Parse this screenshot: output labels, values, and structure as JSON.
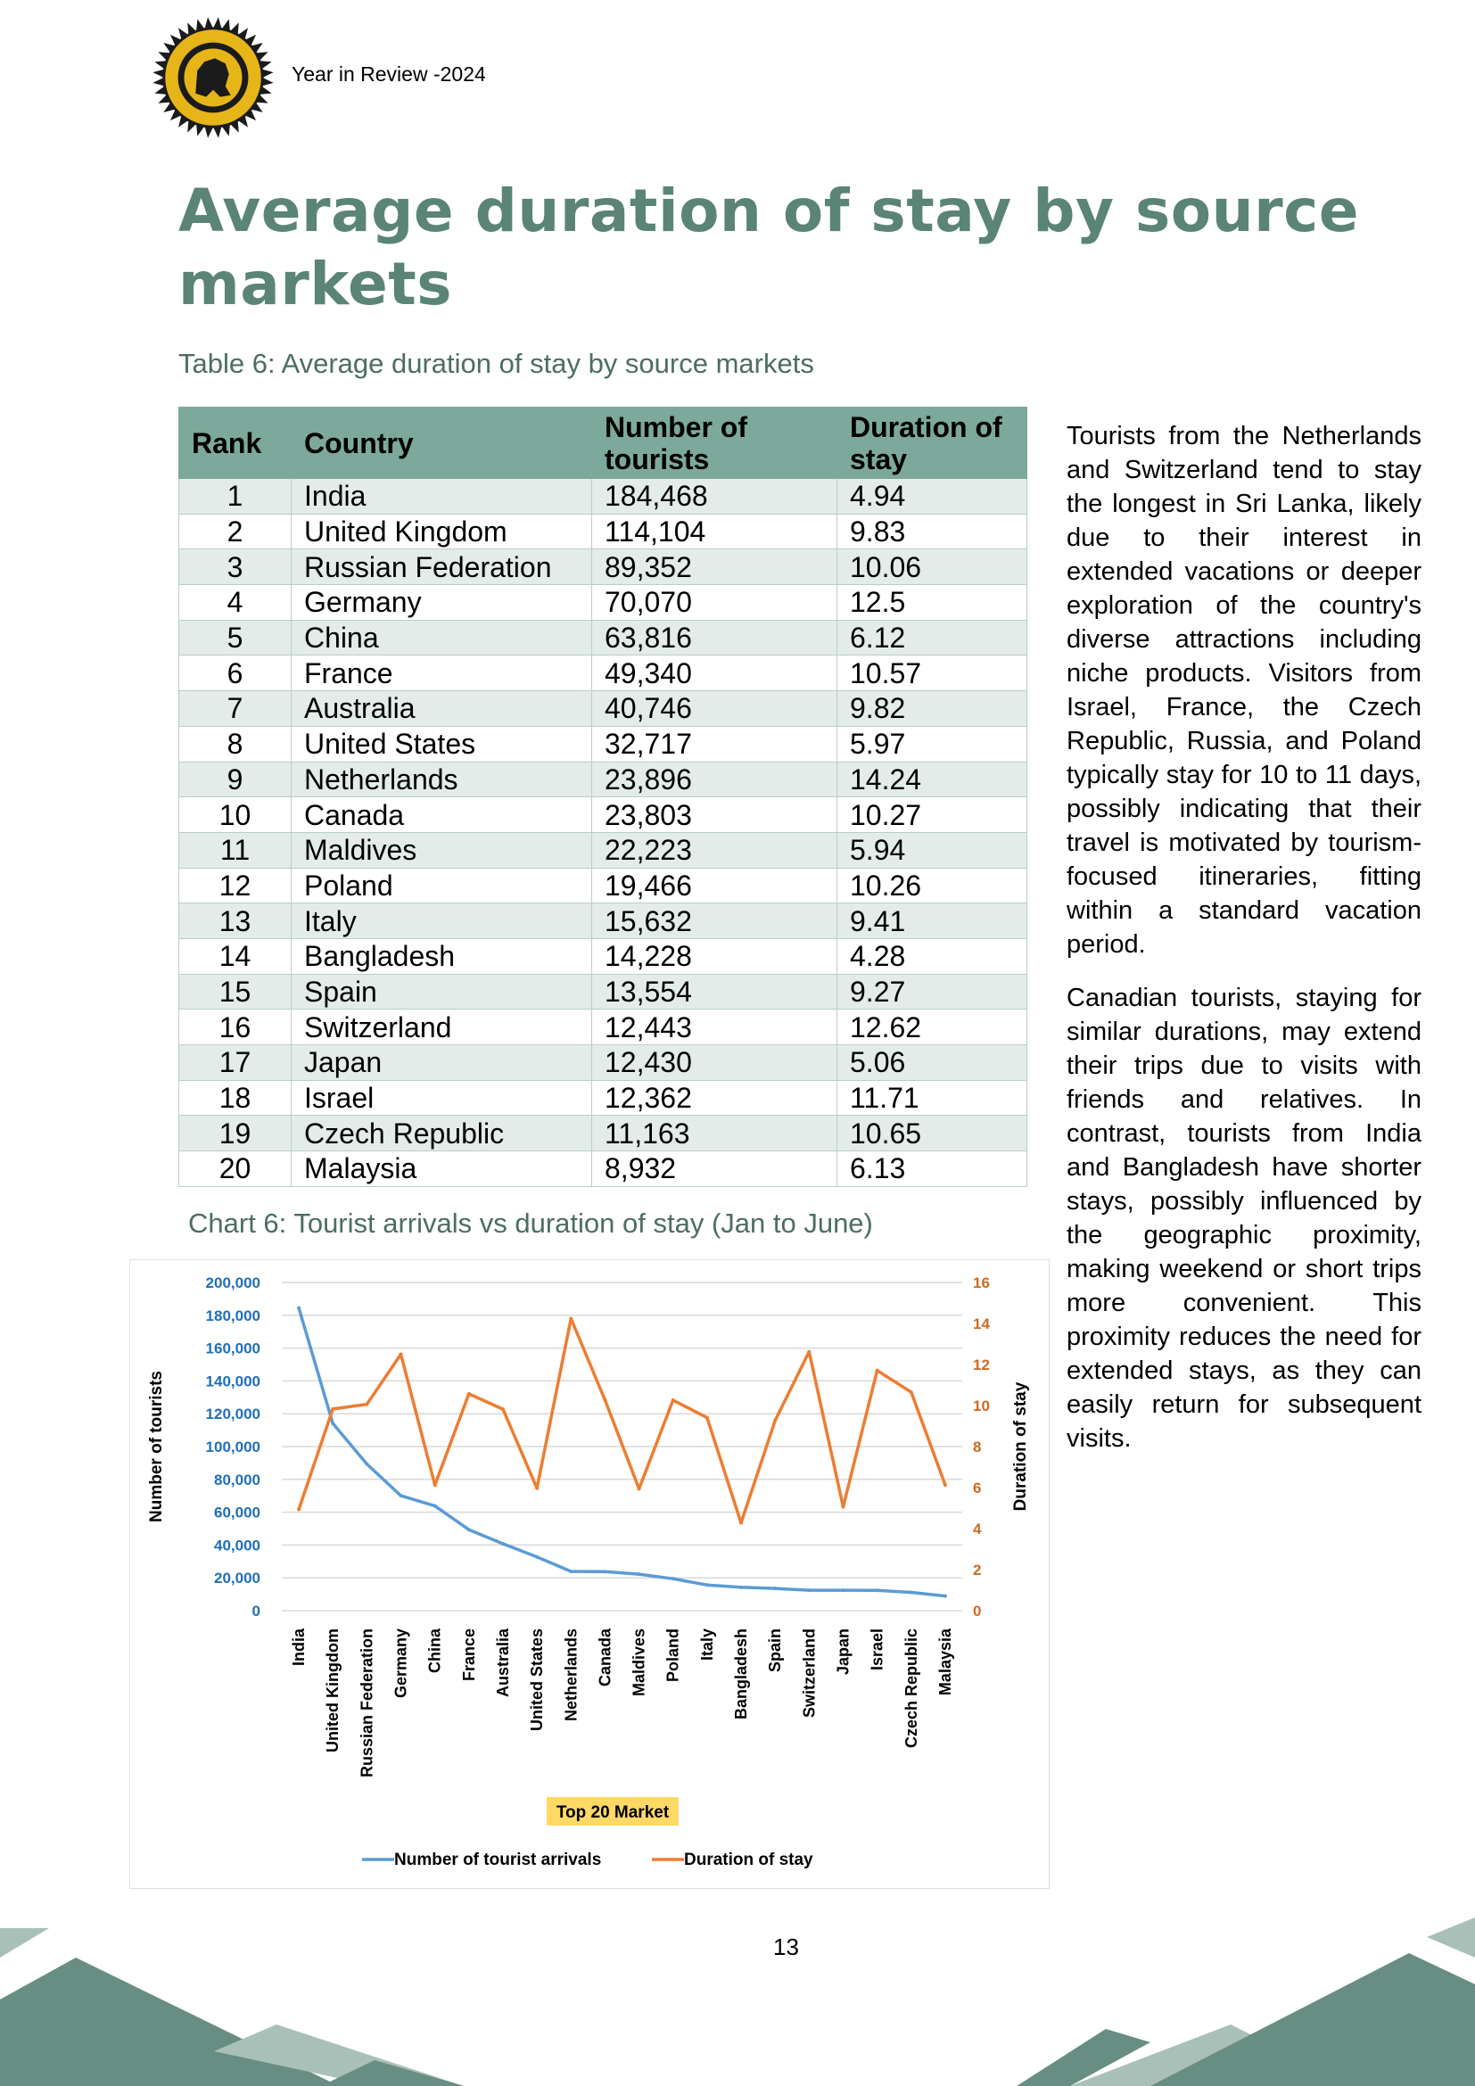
{
  "header": {
    "text": "Year in Review -2024"
  },
  "page_title": "Average duration of stay by source markets",
  "table": {
    "caption": "Table 6: Average duration of stay by source markets",
    "headers": {
      "rank": "Rank",
      "country": "Country",
      "tourists": "Number of tourists",
      "duration": "Duration of stay"
    },
    "rows": [
      {
        "rank": "1",
        "country": "India",
        "tourists": "184,468",
        "duration": "4.94"
      },
      {
        "rank": "2",
        "country": "United Kingdom",
        "tourists": "114,104",
        "duration": "9.83"
      },
      {
        "rank": "3",
        "country": "Russian Federation",
        "tourists": "89,352",
        "duration": "10.06"
      },
      {
        "rank": "4",
        "country": "Germany",
        "tourists": "70,070",
        "duration": "12.5"
      },
      {
        "rank": "5",
        "country": "China",
        "tourists": "63,816",
        "duration": "6.12"
      },
      {
        "rank": "6",
        "country": "France",
        "tourists": "49,340",
        "duration": "10.57"
      },
      {
        "rank": "7",
        "country": "Australia",
        "tourists": "40,746",
        "duration": "9.82"
      },
      {
        "rank": "8",
        "country": "United States",
        "tourists": "32,717",
        "duration": "5.97"
      },
      {
        "rank": "9",
        "country": "Netherlands",
        "tourists": "23,896",
        "duration": "14.24"
      },
      {
        "rank": "10",
        "country": "Canada",
        "tourists": "23,803",
        "duration": "10.27"
      },
      {
        "rank": "11",
        "country": "Maldives",
        "tourists": "22,223",
        "duration": "5.94"
      },
      {
        "rank": "12",
        "country": "Poland",
        "tourists": "19,466",
        "duration": "10.26"
      },
      {
        "rank": "13",
        "country": "Italy",
        "tourists": "15,632",
        "duration": "9.41"
      },
      {
        "rank": "14",
        "country": "Bangladesh",
        "tourists": "14,228",
        "duration": "4.28"
      },
      {
        "rank": "15",
        "country": "Spain",
        "tourists": "13,554",
        "duration": "9.27"
      },
      {
        "rank": "16",
        "country": "Switzerland",
        "tourists": "12,443",
        "duration": "12.62"
      },
      {
        "rank": "17",
        "country": "Japan",
        "tourists": "12,430",
        "duration": "5.06"
      },
      {
        "rank": "18",
        "country": "Israel",
        "tourists": "12,362",
        "duration": "11.71"
      },
      {
        "rank": "19",
        "country": "Czech Republic",
        "tourists": "11,163",
        "duration": "10.65"
      },
      {
        "rank": "20",
        "country": "Malaysia",
        "tourists": "8,932",
        "duration": "6.13"
      }
    ]
  },
  "side_text": [
    "Tourists from the Netherlands and Switzerland tend to stay the longest in Sri Lanka, likely due to their interest in extended vacations or deeper exploration of the country's diverse attractions including niche products. Visitors from Israel, France, the Czech Republic, Russia, and Poland typically stay for 10 to 11 days, possibly indicating that their travel is motivated by tourism-focused itineraries, fitting within a standard vacation period.",
    "Canadian tourists, staying for similar durations, may extend their trips due to visits with friends and relatives. In contrast, tourists from India and Bangladesh have shorter stays, possibly influenced by the geographic proximity, making weekend or short trips more convenient. This proximity reduces the need for extended stays, as they can easily return for subsequent visits."
  ],
  "chart_caption": "Chart 6: Tourist arrivals vs duration of stay (Jan to June)",
  "chart_data": {
    "type": "line",
    "categories": [
      "India",
      "United Kingdom",
      "Russian Federation",
      "Germany",
      "China",
      "France",
      "Australia",
      "United States",
      "Netherlands",
      "Canada",
      "Maldives",
      "Poland",
      "Italy",
      "Bangladesh",
      "Spain",
      "Switzerland",
      "Japan",
      "Israel",
      "Czech Republic",
      "Malaysia"
    ],
    "series": [
      {
        "name": "Number of tourist arrivals",
        "axis": "left",
        "color": "#5b9bd5",
        "values": [
          184468,
          114104,
          89352,
          70070,
          63816,
          49340,
          40746,
          32717,
          23896,
          23803,
          22223,
          19466,
          15632,
          14228,
          13554,
          12443,
          12430,
          12362,
          11163,
          8932
        ]
      },
      {
        "name": "Duration of stay",
        "axis": "right",
        "color": "#ed7d31",
        "values": [
          4.94,
          9.83,
          10.06,
          12.5,
          6.12,
          10.57,
          9.82,
          5.97,
          14.24,
          10.27,
          5.94,
          10.26,
          9.41,
          4.28,
          9.27,
          12.62,
          5.06,
          11.71,
          10.65,
          6.13
        ]
      }
    ],
    "y_left": {
      "label": "Number of tourists",
      "ylim": [
        0,
        200000
      ],
      "ticks": [
        "0",
        "20,000",
        "40,000",
        "60,000",
        "80,000",
        "100,000",
        "120,000",
        "140,000",
        "160,000",
        "180,000",
        "200,000"
      ],
      "color": "#1f6fb8"
    },
    "y_right": {
      "label": "Duration of stay",
      "ylim": [
        0,
        16
      ],
      "ticks": [
        "0",
        "2",
        "4",
        "6",
        "8",
        "10",
        "12",
        "14",
        "16"
      ],
      "color": "#d0691f"
    },
    "xlabel": "Top 20 Market",
    "grid": true,
    "legend": "bottom"
  },
  "page_number": "13",
  "colors": {
    "accent": "#5a8476",
    "table_header": "#7ca99b",
    "row_band": "#e3ece9",
    "footer_dark": "#688e83",
    "footer_light": "#a9c0b9"
  }
}
